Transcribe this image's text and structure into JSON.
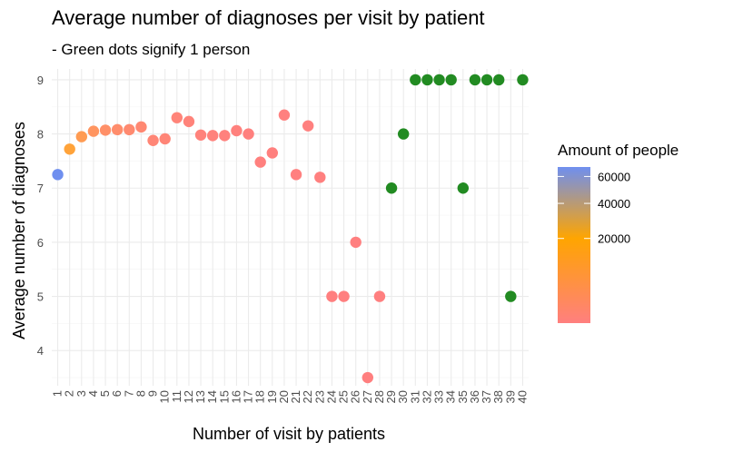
{
  "chart_data": {
    "type": "scatter",
    "title": "Average number of diagnoses per visit by patient",
    "subtitle": "- Green dots signify 1 person",
    "xlabel": "Number of visit by patients",
    "ylabel": "Average number of diagnoses",
    "categories": [
      "1",
      "2",
      "3",
      "4",
      "5",
      "6",
      "7",
      "8",
      "9",
      "10",
      "11",
      "12",
      "13",
      "14",
      "15",
      "16",
      "17",
      "18",
      "19",
      "20",
      "21",
      "22",
      "23",
      "24",
      "25",
      "26",
      "27",
      "28",
      "29",
      "30",
      "31",
      "32",
      "33",
      "34",
      "35",
      "36",
      "37",
      "38",
      "39",
      "40"
    ],
    "y_ticks": [
      4,
      5,
      6,
      7,
      8,
      9
    ],
    "ylim": [
      3.35,
      9.2
    ],
    "grid": true,
    "legend": {
      "title": "Amount of people",
      "position": "right",
      "ticks": [
        20000,
        40000,
        60000
      ],
      "tick_labels": [
        "20000",
        "40000",
        "60000"
      ],
      "scale": "sqrt",
      "range": [
        0,
        68000
      ],
      "colors": [
        "#ff7f7f",
        "#ffa500",
        "#6f8fef"
      ],
      "single_person_color": "#228b22"
    },
    "points": [
      {
        "x": "1",
        "y": 7.25,
        "color": "#6f8fef"
      },
      {
        "x": "2",
        "y": 7.72,
        "color": "#ffa33a"
      },
      {
        "x": "3",
        "y": 7.95,
        "color": "#ff9b52"
      },
      {
        "x": "4",
        "y": 8.05,
        "color": "#ff9560"
      },
      {
        "x": "5",
        "y": 8.07,
        "color": "#ff9068"
      },
      {
        "x": "6",
        "y": 8.08,
        "color": "#ff8d6c"
      },
      {
        "x": "7",
        "y": 8.08,
        "color": "#ff8a70"
      },
      {
        "x": "8",
        "y": 8.13,
        "color": "#ff8872"
      },
      {
        "x": "9",
        "y": 7.88,
        "color": "#ff8676"
      },
      {
        "x": "10",
        "y": 7.91,
        "color": "#ff8577"
      },
      {
        "x": "11",
        "y": 8.3,
        "color": "#ff8479"
      },
      {
        "x": "12",
        "y": 8.23,
        "color": "#ff837a"
      },
      {
        "x": "13",
        "y": 7.98,
        "color": "#ff827b"
      },
      {
        "x": "14",
        "y": 7.97,
        "color": "#ff827c"
      },
      {
        "x": "15",
        "y": 7.97,
        "color": "#ff817d"
      },
      {
        "x": "16",
        "y": 8.06,
        "color": "#ff817d"
      },
      {
        "x": "17",
        "y": 8.0,
        "color": "#ff807e"
      },
      {
        "x": "18",
        "y": 7.48,
        "color": "#ff807e"
      },
      {
        "x": "19",
        "y": 7.65,
        "color": "#ff807e"
      },
      {
        "x": "20",
        "y": 8.35,
        "color": "#ff807f"
      },
      {
        "x": "21",
        "y": 7.25,
        "color": "#ff807f"
      },
      {
        "x": "22",
        "y": 8.15,
        "color": "#ff807f"
      },
      {
        "x": "23",
        "y": 7.2,
        "color": "#ff807f"
      },
      {
        "x": "24",
        "y": 5.0,
        "color": "#ff7f7f"
      },
      {
        "x": "25",
        "y": 5.0,
        "color": "#ff7f7f"
      },
      {
        "x": "26",
        "y": 6.0,
        "color": "#ff7f7f"
      },
      {
        "x": "27",
        "y": 3.5,
        "color": "#ff7f7f"
      },
      {
        "x": "28",
        "y": 5.0,
        "color": "#ff7f7f"
      },
      {
        "x": "29",
        "y": 7.0,
        "color": "#228b22"
      },
      {
        "x": "30",
        "y": 8.0,
        "color": "#228b22"
      },
      {
        "x": "31",
        "y": 9.0,
        "color": "#228b22"
      },
      {
        "x": "32",
        "y": 9.0,
        "color": "#228b22"
      },
      {
        "x": "33",
        "y": 9.0,
        "color": "#228b22"
      },
      {
        "x": "34",
        "y": 9.0,
        "color": "#228b22"
      },
      {
        "x": "35",
        "y": 7.0,
        "color": "#228b22"
      },
      {
        "x": "36",
        "y": 9.0,
        "color": "#228b22"
      },
      {
        "x": "37",
        "y": 9.0,
        "color": "#228b22"
      },
      {
        "x": "38",
        "y": 9.0,
        "color": "#228b22"
      },
      {
        "x": "39",
        "y": 5.0,
        "color": "#228b22"
      },
      {
        "x": "40",
        "y": 9.0,
        "color": "#228b22"
      }
    ]
  }
}
